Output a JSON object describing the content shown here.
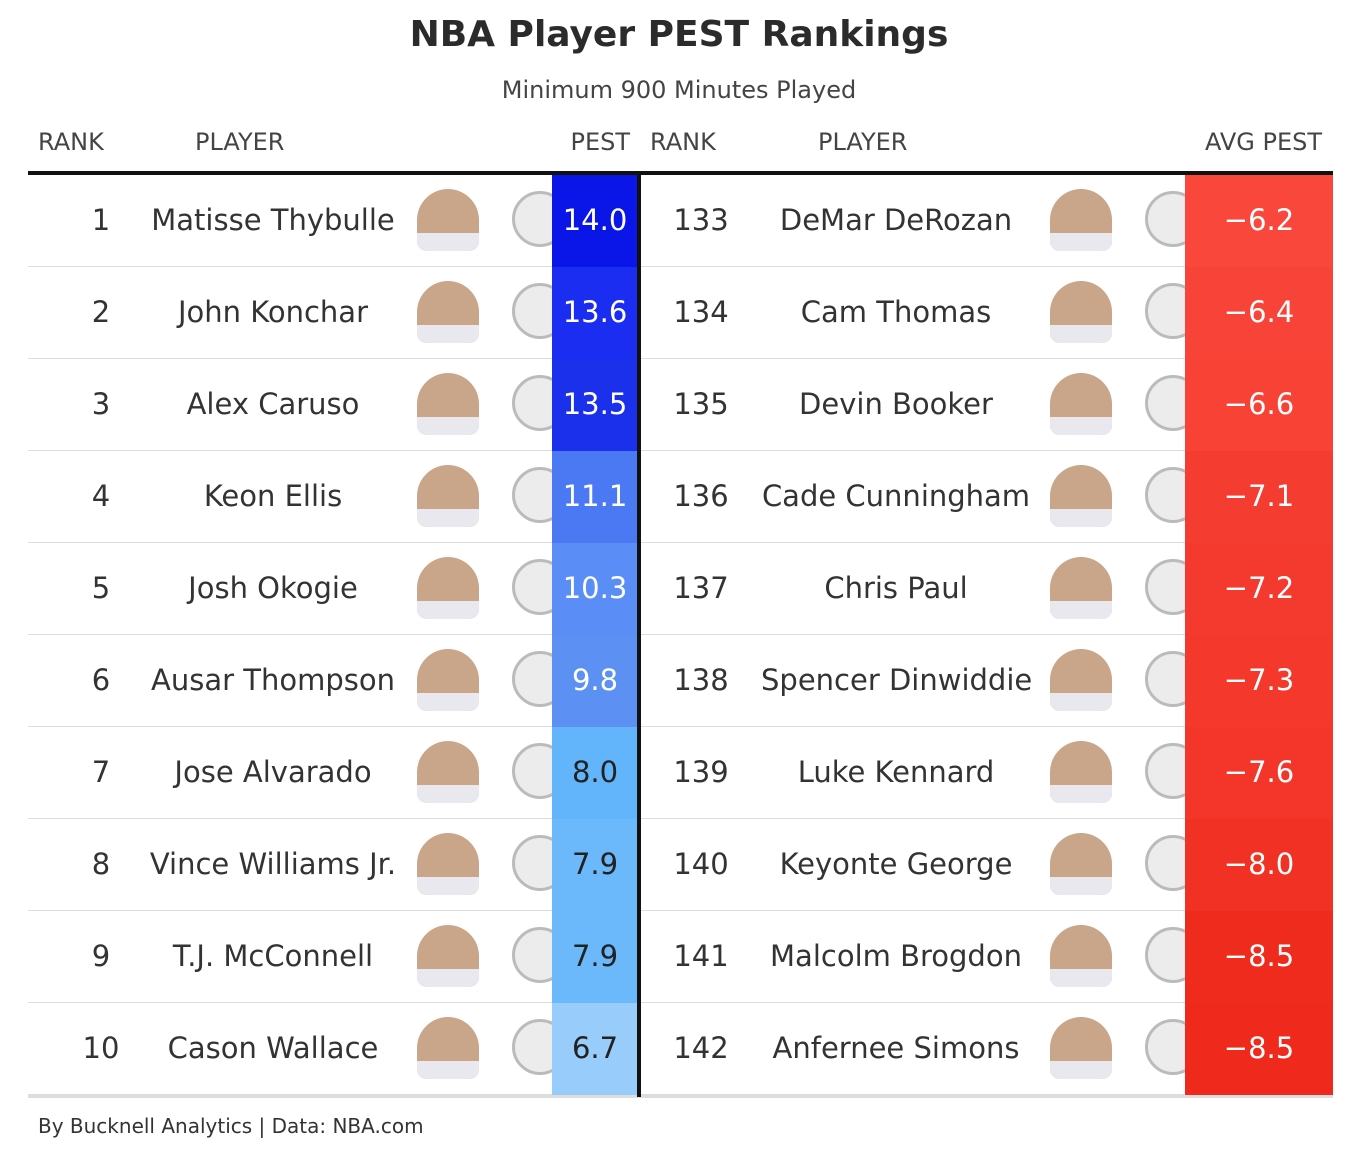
{
  "title": "NBA Player PEST Rankings",
  "subtitle": "Minimum 900 Minutes Played",
  "left": {
    "headers": [
      "RANK",
      "PLAYER",
      "PEST"
    ],
    "rows": [
      {
        "rank": "1",
        "player": "Matisse Thybulle",
        "value": "14.0",
        "color": "#0a16e8"
      },
      {
        "rank": "2",
        "player": "John Konchar",
        "value": "13.6",
        "color": "#1a2df0"
      },
      {
        "rank": "3",
        "player": "Alex Caruso",
        "value": "13.5",
        "color": "#1b30ea"
      },
      {
        "rank": "4",
        "player": "Keon Ellis",
        "value": "11.1",
        "color": "#4b79f3"
      },
      {
        "rank": "5",
        "player": "Josh Okogie",
        "value": "10.3",
        "color": "#5a8df5"
      },
      {
        "rank": "6",
        "player": "Ausar Thompson",
        "value": "9.8",
        "color": "#5d90f3"
      },
      {
        "rank": "7",
        "player": "Jose Alvarado",
        "value": "8.0",
        "color": "#62b5fb"
      },
      {
        "rank": "8",
        "player": "Vince Williams Jr.",
        "value": "7.9",
        "color": "#6bb9fb"
      },
      {
        "rank": "9",
        "player": "T.J. McConnell",
        "value": "7.9",
        "color": "#6bb9fb"
      },
      {
        "rank": "10",
        "player": "Cason Wallace",
        "value": "6.7",
        "color": "#98ccfa"
      }
    ]
  },
  "right": {
    "headers": [
      "RANK",
      "PLAYER",
      "AVG PEST"
    ],
    "rows": [
      {
        "rank": "133",
        "player": "DeMar DeRozan",
        "value": "−6.2",
        "color": "#f9473c"
      },
      {
        "rank": "134",
        "player": "Cam Thomas",
        "value": "−6.4",
        "color": "#f84438"
      },
      {
        "rank": "135",
        "player": "Devin Booker",
        "value": "−6.6",
        "color": "#f74235"
      },
      {
        "rank": "136",
        "player": "Cade Cunningham",
        "value": "−7.1",
        "color": "#f53c30"
      },
      {
        "rank": "137",
        "player": "Chris Paul",
        "value": "−7.2",
        "color": "#f43a2e"
      },
      {
        "rank": "138",
        "player": "Spencer Dinwiddie",
        "value": "−7.3",
        "color": "#f4392c"
      },
      {
        "rank": "139",
        "player": "Luke Kennard",
        "value": "−7.6",
        "color": "#f33629"
      },
      {
        "rank": "140",
        "player": "Keyonte George",
        "value": "−8.0",
        "color": "#f13124"
      },
      {
        "rank": "141",
        "player": "Malcolm Brogdon",
        "value": "−8.5",
        "color": "#ef2b1d"
      },
      {
        "rank": "142",
        "player": "Anfernee Simons",
        "value": "−8.5",
        "color": "#ef2a1c"
      }
    ]
  },
  "footer": "By Bucknell Analytics | Data: NBA.com"
}
